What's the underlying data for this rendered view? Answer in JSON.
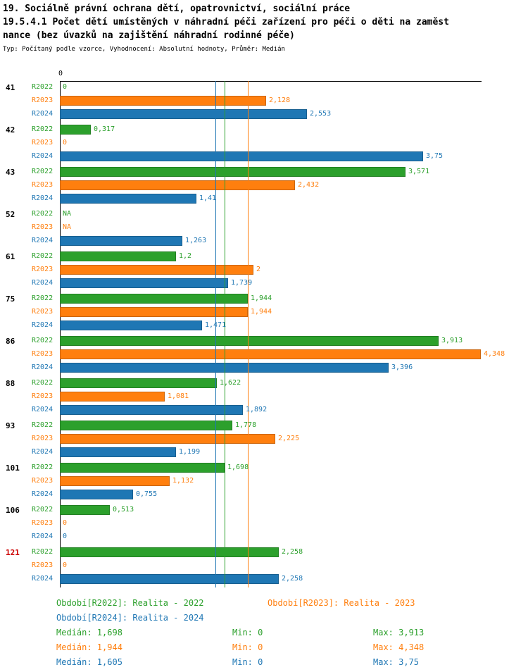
{
  "header": {
    "line1": "19. Sociálně právní ochrana dětí, opatrovnictví, sociální práce",
    "line2": "19.5.4.1 Počet dětí umístěných v náhradní péči zařízení pro péči o děti na zaměst",
    "line3": "nance (bez úvazků na zajištění náhradní rodinné péče)",
    "subtitle": "Typ: Počítaný podle vzorce, Vyhodnocení: Absolutní hodnoty, Průměr: Medián"
  },
  "chart_data": {
    "type": "bar",
    "orientation": "horizontal",
    "x_axis": {
      "zero_label": "0",
      "max": 4.348
    },
    "categories": [
      "41",
      "42",
      "43",
      "52",
      "61",
      "75",
      "86",
      "88",
      "93",
      "101",
      "106",
      "121"
    ],
    "highlight_category": "121",
    "highlight_color": "#cc0000",
    "grid": false,
    "series": [
      {
        "name": "R2022",
        "color": "#2ca02c",
        "median": 1.698,
        "values": [
          0,
          0.317,
          3.571,
          null,
          1.2,
          1.944,
          3.913,
          1.622,
          1.778,
          1.698,
          0.513,
          2.258
        ],
        "value_labels": [
          "0",
          "0,317",
          "3,571",
          "NA",
          "1,2",
          "1,944",
          "3,913",
          "1,622",
          "1,778",
          "1,698",
          "0,513",
          "2,258"
        ]
      },
      {
        "name": "R2023",
        "color": "#ff7f0e",
        "median": 1.944,
        "values": [
          2.128,
          0,
          2.432,
          null,
          2,
          1.944,
          4.348,
          1.081,
          2.225,
          1.132,
          0,
          0
        ],
        "value_labels": [
          "2,128",
          "0",
          "2,432",
          "NA",
          "2",
          "1,944",
          "4,348",
          "1,081",
          "2,225",
          "1,132",
          "0",
          "0"
        ]
      },
      {
        "name": "R2024",
        "color": "#1f77b4",
        "median": 1.605,
        "values": [
          2.553,
          3.75,
          1.41,
          1.263,
          1.739,
          1.471,
          3.396,
          1.892,
          1.199,
          0.755,
          0,
          2.258
        ],
        "value_labels": [
          "2,553",
          "3,75",
          "1,41",
          "1,263",
          "1,739",
          "1,471",
          "3,396",
          "1,892",
          "1,199",
          "0,755",
          "0",
          "2,258"
        ]
      }
    ]
  },
  "legend": {
    "items": [
      {
        "label": "Období[R2022]: Realita - 2022",
        "color": "#2ca02c"
      },
      {
        "label": "Období[R2023]: Realita - 2023",
        "color": "#ff7f0e"
      },
      {
        "label": "Období[R2024]: Realita - 2024",
        "color": "#1f77b4"
      }
    ]
  },
  "stats": {
    "rows": [
      {
        "median": "Medián: 1,698",
        "min": "Min: 0",
        "max": "Max: 3,913",
        "color": "#2ca02c"
      },
      {
        "median": "Medián: 1,944",
        "min": "Min: 0",
        "max": "Max: 4,348",
        "color": "#ff7f0e"
      },
      {
        "median": "Medián: 1,605",
        "min": "Min: 0",
        "max": "Max: 3,75",
        "color": "#1f77b4"
      }
    ]
  }
}
